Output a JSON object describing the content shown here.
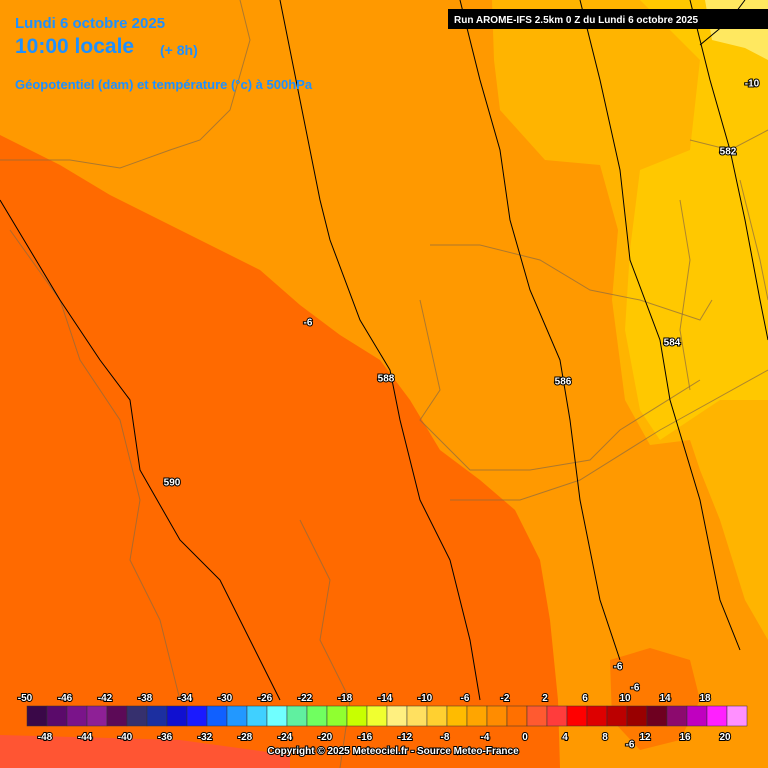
{
  "header": {
    "date": "Lundi 6 octobre 2025",
    "time": "10:00 locale",
    "offset": "(+ 8h)",
    "field": "Géopotentiel (dam) et température (°c) à 500hPa",
    "run": "Run AROME-IFS 2.5km 0 Z du Lundi 6 octobre 2025"
  },
  "map_labels": [
    "-10",
    "582",
    "-6",
    "584",
    "588",
    "586",
    "590",
    "-6",
    "-6",
    "-6"
  ],
  "legend": {
    "top_labels": [
      "-50",
      "-46",
      "-42",
      "-38",
      "-34",
      "-30",
      "-26",
      "-22",
      "-18",
      "-14",
      "-10",
      "-6",
      "-2",
      "2",
      "6",
      "10",
      "14",
      "18"
    ],
    "bottom_labels": [
      "-48",
      "-44",
      "-40",
      "-36",
      "-32",
      "-28",
      "-24",
      "-20",
      "-16",
      "-12",
      "-8",
      "-4",
      "0",
      "4",
      "8",
      "12",
      "16",
      "20"
    ],
    "colors": [
      "#3a0848",
      "#5a0a6a",
      "#7a148a",
      "#8e2096",
      "#5c0a57",
      "#36306e",
      "#1c2fa0",
      "#1010d0",
      "#1a1aff",
      "#1060ff",
      "#2298ff",
      "#40d0ff",
      "#70ffff",
      "#60f0a0",
      "#70ff60",
      "#90ff30",
      "#c8ff00",
      "#f0ff30",
      "#fff080",
      "#ffe060",
      "#ffd030",
      "#ffbb00",
      "#ffa500",
      "#ff8c00",
      "#ff7000",
      "#ff5a30",
      "#ff3c3c",
      "#ff0000",
      "#dd0000",
      "#bb0000",
      "#990000",
      "#6e0020",
      "#8c0a6e",
      "#c000c0",
      "#ff20ff",
      "#ff90ff"
    ]
  },
  "footer": "Copyright © 2025 Meteociel.fr - Source Meteo-France"
}
